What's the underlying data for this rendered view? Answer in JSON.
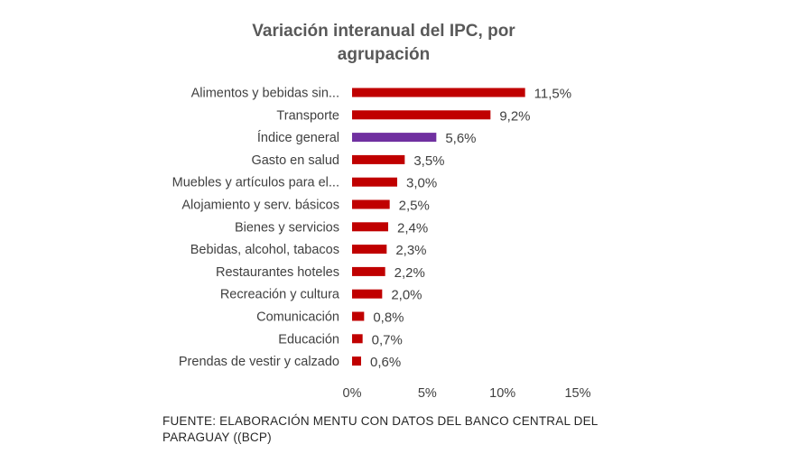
{
  "chart_data": {
    "type": "bar",
    "orientation": "horizontal",
    "title": "Variación interanual del IPC, por agrupación",
    "categories": [
      "Alimentos y bebidas sin...",
      "Transporte",
      "Índice general",
      "Gasto en salud",
      "Muebles y artículos para el...",
      "Alojamiento y serv. básicos",
      "Bienes y servicios",
      "Bebidas, alcohol, tabacos",
      "Restaurantes hoteles",
      "Recreación y cultura",
      "Comunicación",
      "Educación",
      "Prendas de vestir y calzado"
    ],
    "values": [
      11.5,
      9.2,
      5.6,
      3.5,
      3.0,
      2.5,
      2.4,
      2.3,
      2.2,
      2.0,
      0.8,
      0.7,
      0.6
    ],
    "value_labels": [
      "11,5%",
      "9,2%",
      "5,6%",
      "3,5%",
      "3,0%",
      "2,5%",
      "2,4%",
      "2,3%",
      "2,2%",
      "2,0%",
      "0,8%",
      "0,7%",
      "0,6%"
    ],
    "xlim": [
      0,
      15
    ],
    "xticks": [
      0,
      5,
      10,
      15
    ],
    "xtick_labels": [
      "0%",
      "5%",
      "10%",
      "15%"
    ],
    "xlabel": "",
    "ylabel": "",
    "grid": false,
    "legend": "none",
    "colors": {
      "default": "#C00000",
      "highlight": "#7030A0",
      "highlight_category": "Índice general"
    }
  },
  "source_note": "FUENTE: ELABORACIÓN MENTU CON DATOS DEL BANCO CENTRAL DEL PARAGUAY ((BCP)"
}
